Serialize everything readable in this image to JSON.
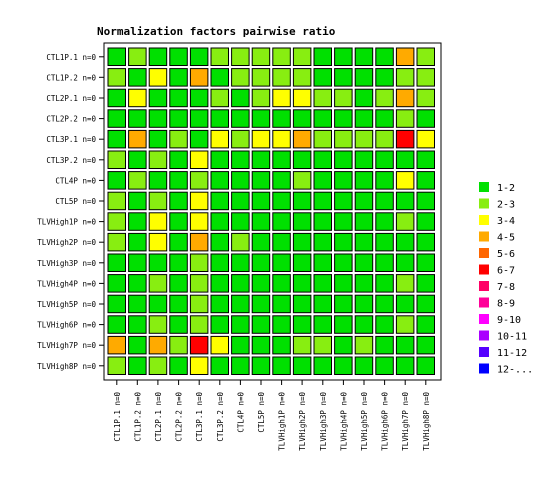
{
  "chart_data": {
    "type": "heatmap",
    "title": "Normalization factors pairwise ratio",
    "rows": [
      "CTL1P.1 n=0",
      "CTL1P.2 n=0",
      "CTL2P.1 n=0",
      "CTL2P.2 n=0",
      "CTL3P.1 n=0",
      "CTL3P.2 n=0",
      "CTL4P n=0",
      "CTL5P n=0",
      "TLVHigh1P n=0",
      "TLVHigh2P n=0",
      "TLVHigh3P n=0",
      "TLVHigh4P n=0",
      "TLVHigh5P n=0",
      "TLVHigh6P n=0",
      "TLVHigh7P n=0",
      "TLVHigh8P n=0"
    ],
    "columns": [
      "CTL1P.1 n=0",
      "CTL1P.2 n=0",
      "CTL2P.1 n=0",
      "CTL2P.2 n=0",
      "CTL3P.1 n=0",
      "CTL3P.2 n=0",
      "CTL4P n=0",
      "CTL5P n=0",
      "TLVHigh1P n=0",
      "TLVHigh2P n=0",
      "TLVHigh3P n=0",
      "TLVHigh4P n=0",
      "TLVHigh5P n=0",
      "TLVHigh6P n=0",
      "TLVHigh7P n=0",
      "TLVHigh8P n=0"
    ],
    "legend": [
      {
        "label": "1-2",
        "color": "#00e000"
      },
      {
        "label": "2-3",
        "color": "#88ee11"
      },
      {
        "label": "3-4",
        "color": "#ffff00"
      },
      {
        "label": "4-5",
        "color": "#ffaa00"
      },
      {
        "label": "5-6",
        "color": "#ff6600"
      },
      {
        "label": "6-7",
        "color": "#ff0000"
      },
      {
        "label": "7-8",
        "color": "#ff0066"
      },
      {
        "label": "8-9",
        "color": "#ff0099"
      },
      {
        "label": "9-10",
        "color": "#ff00ff"
      },
      {
        "label": "10-11",
        "color": "#aa00ff"
      },
      {
        "label": "11-12",
        "color": "#5500ff"
      },
      {
        "label": "12-...",
        "color": "#0000ff"
      }
    ],
    "legend_position": "right",
    "cells": [
      [
        0,
        1,
        0,
        0,
        0,
        1,
        1,
        1,
        1,
        1,
        0,
        0,
        0,
        0,
        3,
        1
      ],
      [
        1,
        0,
        2,
        0,
        3,
        0,
        1,
        1,
        1,
        1,
        0,
        0,
        0,
        0,
        1,
        1
      ],
      [
        0,
        2,
        0,
        0,
        0,
        1,
        0,
        1,
        2,
        2,
        1,
        1,
        0,
        1,
        3,
        1
      ],
      [
        0,
        0,
        0,
        0,
        0,
        0,
        0,
        0,
        0,
        0,
        0,
        0,
        0,
        0,
        1,
        0
      ],
      [
        0,
        3,
        0,
        1,
        0,
        2,
        1,
        2,
        2,
        3,
        1,
        1,
        1,
        1,
        5,
        2
      ],
      [
        1,
        0,
        1,
        0,
        2,
        0,
        0,
        0,
        0,
        0,
        0,
        0,
        0,
        0,
        0,
        0
      ],
      [
        0,
        1,
        0,
        0,
        1,
        0,
        0,
        0,
        0,
        1,
        0,
        0,
        0,
        0,
        2,
        0
      ],
      [
        1,
        0,
        1,
        0,
        2,
        0,
        0,
        0,
        0,
        0,
        0,
        0,
        0,
        0,
        0,
        0
      ],
      [
        1,
        0,
        2,
        0,
        2,
        0,
        0,
        0,
        0,
        0,
        0,
        0,
        0,
        0,
        1,
        0
      ],
      [
        1,
        0,
        2,
        0,
        3,
        0,
        1,
        0,
        0,
        0,
        0,
        0,
        0,
        0,
        0,
        0
      ],
      [
        0,
        0,
        0,
        0,
        1,
        0,
        0,
        0,
        0,
        0,
        0,
        0,
        0,
        0,
        0,
        0
      ],
      [
        0,
        0,
        1,
        0,
        1,
        0,
        0,
        0,
        0,
        0,
        0,
        0,
        0,
        0,
        1,
        0
      ],
      [
        0,
        0,
        0,
        0,
        1,
        0,
        0,
        0,
        0,
        0,
        0,
        0,
        0,
        0,
        0,
        0
      ],
      [
        0,
        0,
        1,
        0,
        1,
        0,
        0,
        0,
        0,
        0,
        0,
        0,
        0,
        0,
        1,
        0
      ],
      [
        3,
        0,
        3,
        1,
        5,
        2,
        0,
        0,
        0,
        1,
        1,
        0,
        1,
        0,
        0,
        0
      ],
      [
        1,
        0,
        1,
        0,
        2,
        0,
        0,
        0,
        0,
        0,
        0,
        0,
        0,
        0,
        0,
        0
      ]
    ]
  }
}
